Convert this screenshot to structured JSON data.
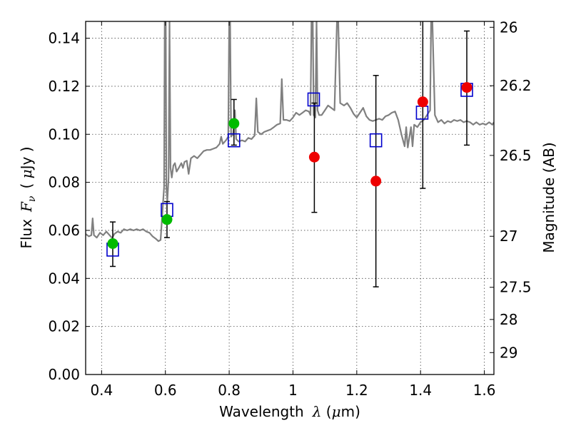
{
  "chart_data": {
    "type": "scatter",
    "xlabel_text": "Wavelength",
    "xlabel_symbol": "λ",
    "xlabel_unit_open": " (",
    "xlabel_unit_symbol": "μ",
    "xlabel_unit_close": "m)",
    "ylabel_text": "Flux",
    "ylabel_symbol": "F",
    "ylabel_sub": "ν",
    "ylabel_unit_open": "( ",
    "ylabel_unit_symbol": "μ",
    "ylabel_unit_close": "Jy )",
    "y2label": "Magnitude (AB)",
    "xlim": [
      0.35,
      1.63
    ],
    "ylim": [
      0.0,
      0.147
    ],
    "grid": true,
    "x_ticks": [
      {
        "v": 0.4,
        "label": "0.4"
      },
      {
        "v": 0.6,
        "label": "0.6"
      },
      {
        "v": 0.8,
        "label": "0.8"
      },
      {
        "v": 1.0,
        "label": "1"
      },
      {
        "v": 1.2,
        "label": "1.2"
      },
      {
        "v": 1.4,
        "label": "1.4"
      },
      {
        "v": 1.6,
        "label": "1.6"
      }
    ],
    "y_ticks": [
      {
        "v": 0.0,
        "label": "0.00"
      },
      {
        "v": 0.02,
        "label": "0.02"
      },
      {
        "v": 0.04,
        "label": "0.04"
      },
      {
        "v": 0.06,
        "label": "0.06"
      },
      {
        "v": 0.08,
        "label": "0.08"
      },
      {
        "v": 0.1,
        "label": "0.10"
      },
      {
        "v": 0.12,
        "label": "0.12"
      },
      {
        "v": 0.14,
        "label": "0.14"
      }
    ],
    "y2_ticks": [
      {
        "mag": 26.0,
        "label": "26"
      },
      {
        "mag": 26.2,
        "label": "26.2"
      },
      {
        "mag": 26.5,
        "label": "26.5"
      },
      {
        "mag": 27.0,
        "label": "27"
      },
      {
        "mag": 27.5,
        "label": "27.5"
      },
      {
        "mag": 28.0,
        "label": "28"
      },
      {
        "mag": 29.0,
        "label": "29"
      }
    ],
    "colors": {
      "spectrum": "#808080",
      "model": "#0000cc",
      "green": "#00bb00",
      "red": "#ee0000",
      "errorbar": "#000000"
    },
    "spectrum": [
      [
        0.35,
        0.0585
      ],
      [
        0.36,
        0.0575
      ],
      [
        0.368,
        0.058
      ],
      [
        0.372,
        0.065
      ],
      [
        0.376,
        0.058
      ],
      [
        0.385,
        0.057
      ],
      [
        0.395,
        0.059
      ],
      [
        0.405,
        0.058
      ],
      [
        0.415,
        0.0595
      ],
      [
        0.425,
        0.058
      ],
      [
        0.433,
        0.0568
      ],
      [
        0.44,
        0.0585
      ],
      [
        0.45,
        0.0595
      ],
      [
        0.46,
        0.059
      ],
      [
        0.47,
        0.0605
      ],
      [
        0.48,
        0.06
      ],
      [
        0.49,
        0.0605
      ],
      [
        0.5,
        0.06
      ],
      [
        0.51,
        0.0605
      ],
      [
        0.52,
        0.06
      ],
      [
        0.53,
        0.0605
      ],
      [
        0.54,
        0.0595
      ],
      [
        0.55,
        0.059
      ],
      [
        0.56,
        0.0575
      ],
      [
        0.57,
        0.0565
      ],
      [
        0.578,
        0.0555
      ],
      [
        0.585,
        0.056
      ],
      [
        0.592,
        0.07
      ],
      [
        0.596,
        0.078
      ],
      [
        0.598,
        0.147
      ],
      [
        0.601,
        0.147
      ],
      [
        0.603,
        0.078
      ],
      [
        0.606,
        0.072
      ],
      [
        0.61,
        0.082
      ],
      [
        0.613,
        0.147
      ],
      [
        0.616,
        0.086
      ],
      [
        0.62,
        0.082
      ],
      [
        0.625,
        0.087
      ],
      [
        0.63,
        0.088
      ],
      [
        0.635,
        0.0845
      ],
      [
        0.642,
        0.086
      ],
      [
        0.65,
        0.088
      ],
      [
        0.655,
        0.086
      ],
      [
        0.66,
        0.0885
      ],
      [
        0.667,
        0.089
      ],
      [
        0.673,
        0.0835
      ],
      [
        0.68,
        0.09
      ],
      [
        0.69,
        0.091
      ],
      [
        0.7,
        0.09
      ],
      [
        0.71,
        0.0915
      ],
      [
        0.72,
        0.093
      ],
      [
        0.73,
        0.0935
      ],
      [
        0.74,
        0.0935
      ],
      [
        0.75,
        0.094
      ],
      [
        0.76,
        0.0945
      ],
      [
        0.77,
        0.096
      ],
      [
        0.775,
        0.099
      ],
      [
        0.78,
        0.096
      ],
      [
        0.79,
        0.0975
      ],
      [
        0.797,
        0.099
      ],
      [
        0.8,
        0.147
      ],
      [
        0.803,
        0.147
      ],
      [
        0.806,
        0.099
      ],
      [
        0.812,
        0.1
      ],
      [
        0.818,
        0.11
      ],
      [
        0.822,
        0.098
      ],
      [
        0.83,
        0.097
      ],
      [
        0.84,
        0.0975
      ],
      [
        0.85,
        0.097
      ],
      [
        0.86,
        0.0985
      ],
      [
        0.87,
        0.098
      ],
      [
        0.88,
        0.0995
      ],
      [
        0.885,
        0.115
      ],
      [
        0.89,
        0.101
      ],
      [
        0.9,
        0.1
      ],
      [
        0.91,
        0.101
      ],
      [
        0.92,
        0.1015
      ],
      [
        0.93,
        0.102
      ],
      [
        0.94,
        0.103
      ],
      [
        0.95,
        0.104
      ],
      [
        0.96,
        0.1045
      ],
      [
        0.965,
        0.123
      ],
      [
        0.97,
        0.106
      ],
      [
        0.98,
        0.106
      ],
      [
        0.99,
        0.1055
      ],
      [
        1.0,
        0.107
      ],
      [
        1.005,
        0.108
      ],
      [
        1.01,
        0.109
      ],
      [
        1.02,
        0.108
      ],
      [
        1.03,
        0.109
      ],
      [
        1.04,
        0.11
      ],
      [
        1.05,
        0.1095
      ],
      [
        1.055,
        0.108
      ],
      [
        1.058,
        0.147
      ],
      [
        1.062,
        0.147
      ],
      [
        1.065,
        0.108
      ],
      [
        1.07,
        0.107
      ],
      [
        1.074,
        0.147
      ],
      [
        1.077,
        0.11
      ],
      [
        1.082,
        0.108
      ],
      [
        1.09,
        0.108
      ],
      [
        1.1,
        0.11
      ],
      [
        1.11,
        0.112
      ],
      [
        1.12,
        0.111
      ],
      [
        1.13,
        0.11
      ],
      [
        1.138,
        0.147
      ],
      [
        1.142,
        0.147
      ],
      [
        1.148,
        0.113
      ],
      [
        1.16,
        0.112
      ],
      [
        1.17,
        0.113
      ],
      [
        1.18,
        0.111
      ],
      [
        1.19,
        0.1085
      ],
      [
        1.2,
        0.107
      ],
      [
        1.21,
        0.109
      ],
      [
        1.22,
        0.111
      ],
      [
        1.23,
        0.1075
      ],
      [
        1.24,
        0.106
      ],
      [
        1.25,
        0.1055
      ],
      [
        1.26,
        0.106
      ],
      [
        1.27,
        0.1065
      ],
      [
        1.28,
        0.106
      ],
      [
        1.29,
        0.1075
      ],
      [
        1.3,
        0.108
      ],
      [
        1.31,
        0.109
      ],
      [
        1.32,
        0.1095
      ],
      [
        1.33,
        0.106
      ],
      [
        1.34,
        0.1
      ],
      [
        1.35,
        0.095
      ],
      [
        1.355,
        0.103
      ],
      [
        1.36,
        0.0945
      ],
      [
        1.37,
        0.103
      ],
      [
        1.375,
        0.095
      ],
      [
        1.38,
        0.104
      ],
      [
        1.39,
        0.103
      ],
      [
        1.4,
        0.105
      ],
      [
        1.41,
        0.106
      ],
      [
        1.42,
        0.108
      ],
      [
        1.43,
        0.11
      ],
      [
        1.433,
        0.147
      ],
      [
        1.437,
        0.147
      ],
      [
        1.445,
        0.108
      ],
      [
        1.455,
        0.105
      ],
      [
        1.465,
        0.106
      ],
      [
        1.475,
        0.1045
      ],
      [
        1.485,
        0.1055
      ],
      [
        1.495,
        0.105
      ],
      [
        1.505,
        0.106
      ],
      [
        1.515,
        0.1055
      ],
      [
        1.525,
        0.106
      ],
      [
        1.535,
        0.105
      ],
      [
        1.545,
        0.1055
      ],
      [
        1.555,
        0.105
      ],
      [
        1.565,
        0.104
      ],
      [
        1.575,
        0.105
      ],
      [
        1.585,
        0.104
      ],
      [
        1.595,
        0.1045
      ],
      [
        1.605,
        0.104
      ],
      [
        1.615,
        0.105
      ],
      [
        1.625,
        0.104
      ],
      [
        1.63,
        0.105
      ]
    ],
    "model_squares": [
      {
        "x": 0.435,
        "y": 0.052
      },
      {
        "x": 0.605,
        "y": 0.0685
      },
      {
        "x": 0.815,
        "y": 0.0975
      },
      {
        "x": 1.065,
        "y": 0.1145
      },
      {
        "x": 1.26,
        "y": 0.0975
      },
      {
        "x": 1.405,
        "y": 0.109
      },
      {
        "x": 1.545,
        "y": 0.1185
      }
    ],
    "observed_green": [
      {
        "x": 0.435,
        "y": 0.0545,
        "err_low": 0.045,
        "err_high": 0.0635
      },
      {
        "x": 0.605,
        "y": 0.0645,
        "err_low": 0.057,
        "err_high": 0.072
      },
      {
        "x": 0.815,
        "y": 0.1045,
        "err_low": 0.0955,
        "err_high": 0.1145
      }
    ],
    "observed_red": [
      {
        "x": 1.067,
        "y": 0.0905,
        "err_low": 0.0675,
        "err_high": 0.113
      },
      {
        "x": 1.26,
        "y": 0.0805,
        "err_low": 0.0365,
        "err_high": 0.1245
      },
      {
        "x": 1.407,
        "y": 0.1135,
        "err_low": 0.0775,
        "err_high": 0.147
      },
      {
        "x": 1.545,
        "y": 0.1195,
        "err_low": 0.0955,
        "err_high": 0.143
      }
    ]
  }
}
